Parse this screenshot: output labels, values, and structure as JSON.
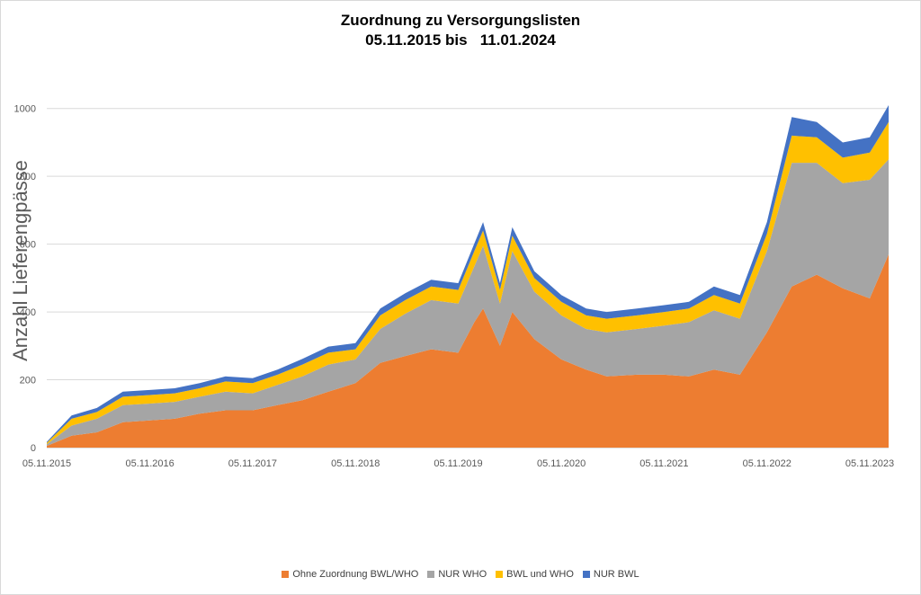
{
  "chart_data": {
    "type": "area",
    "stacked": true,
    "title": "Zuordnung zu Versorgungslisten",
    "subtitle": "05.11.2015 bis   11.01.2024",
    "ylabel": "Anzahl Lieferengpässe",
    "xlabel": "",
    "ylim": [
      0,
      1100
    ],
    "yticks": [
      "0",
      "200",
      "400",
      "600",
      "800",
      "1000"
    ],
    "grid": true,
    "legend_position": "bottom",
    "x": [
      "2015-11-05",
      "2016-02-01",
      "2016-05-01",
      "2016-08-01",
      "2016-11-05",
      "2017-02-01",
      "2017-05-01",
      "2017-08-01",
      "2017-11-05",
      "2018-02-01",
      "2018-05-01",
      "2018-08-01",
      "2018-11-05",
      "2019-02-01",
      "2019-05-01",
      "2019-08-01",
      "2019-11-05",
      "2020-01-01",
      "2020-02-01",
      "2020-04-01",
      "2020-05-15",
      "2020-08-01",
      "2020-11-05",
      "2021-02-01",
      "2021-04-15",
      "2021-08-01",
      "2021-11-05",
      "2022-02-01",
      "2022-05-01",
      "2022-08-01",
      "2022-11-05",
      "2023-02-01",
      "2023-05-01",
      "2023-08-01",
      "2023-11-05",
      "2024-01-11"
    ],
    "xticklabels": [
      "05.11.2015",
      "05.11.2016",
      "05.11.2017",
      "05.11.2018",
      "05.11.2019",
      "05.11.2020",
      "05.11.2021",
      "05.11.2022",
      "05.11.2023"
    ],
    "xtickdates": [
      "2015-11-05",
      "2016-11-05",
      "2017-11-05",
      "2018-11-05",
      "2019-11-05",
      "2020-11-05",
      "2021-11-05",
      "2022-11-05",
      "2023-11-05"
    ],
    "series": [
      {
        "name": "Ohne Zuordnung BWL/WHO",
        "color": "#ED7D31",
        "values": [
          5,
          35,
          45,
          75,
          80,
          85,
          100,
          110,
          110,
          125,
          140,
          165,
          190,
          250,
          270,
          290,
          280,
          370,
          410,
          300,
          400,
          320,
          260,
          230,
          210,
          215,
          215,
          210,
          230,
          215,
          340,
          475,
          510,
          470,
          440,
          570
        ]
      },
      {
        "name": "NUR WHO",
        "color": "#A5A5A5",
        "values": [
          5,
          30,
          40,
          50,
          50,
          50,
          50,
          55,
          50,
          60,
          70,
          80,
          70,
          100,
          125,
          145,
          145,
          165,
          185,
          125,
          180,
          140,
          130,
          120,
          130,
          135,
          145,
          160,
          175,
          165,
          240,
          365,
          330,
          310,
          350,
          280
        ]
      },
      {
        "name": "BWL und WHO",
        "color": "#FFC000",
        "values": [
          4,
          20,
          20,
          25,
          25,
          25,
          25,
          30,
          30,
          30,
          35,
          35,
          30,
          40,
          40,
          40,
          40,
          45,
          45,
          40,
          45,
          40,
          40,
          40,
          40,
          40,
          40,
          40,
          45,
          45,
          50,
          80,
          75,
          75,
          80,
          110
        ]
      },
      {
        "name": "NUR BWL",
        "color": "#4472C4",
        "values": [
          3,
          10,
          12,
          15,
          15,
          15,
          15,
          15,
          15,
          15,
          17,
          18,
          18,
          20,
          20,
          20,
          20,
          22,
          25,
          20,
          25,
          20,
          20,
          20,
          20,
          20,
          20,
          20,
          25,
          25,
          35,
          55,
          45,
          45,
          45,
          50
        ]
      }
    ]
  }
}
